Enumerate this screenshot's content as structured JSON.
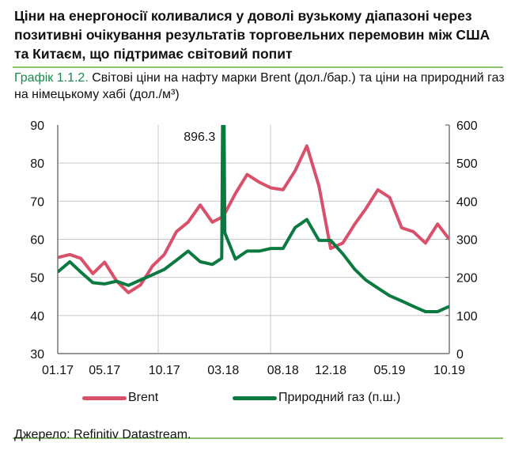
{
  "header": {
    "title": "Ціни на енергоносії коливалися у доволі вузькому діапазоні через позитивні очікування результатів торговельних перемовин між США та Китаєм, що підтримає світовий попит",
    "caption_number": "Графік 1.1.2.",
    "caption_text": " Світові ціни на нафту марки Brent (дол./бар.) та ціни на природний газ на німецькому хабі (дол./м³)"
  },
  "source": "Джерело: Refinitiv Datastream.",
  "colors": {
    "brent": "#d9506a",
    "gas": "#0b7a40",
    "rule": "#8dc26f",
    "caption_accent": "#1a8a4a",
    "grid": "#c8c8c8"
  },
  "chart_data": {
    "type": "line",
    "title": "",
    "x_tick_labels": [
      "01.17",
      "05.17",
      "10.17",
      "03.18",
      "08.18",
      "12.18",
      "05.19",
      "10.19"
    ],
    "x_tick_dates": [
      "2017-01-01",
      "2017-05-01",
      "2017-10-01",
      "2018-03-01",
      "2018-08-01",
      "2018-12-01",
      "2019-05-01",
      "2019-10-01"
    ],
    "xlim": [
      "2017-01-01",
      "2019-10-01"
    ],
    "y_left": {
      "lim": [
        30,
        90
      ],
      "ticks": [
        "30",
        "40",
        "50",
        "60",
        "70",
        "80",
        "90"
      ]
    },
    "y_right": {
      "lim": [
        0,
        600
      ],
      "ticks": [
        "0",
        "100",
        "200",
        "300",
        "400",
        "500",
        "600"
      ]
    },
    "grid": true,
    "legend_placement": "bottom",
    "annotation": {
      "text": "896.3",
      "date": "2018-03-01",
      "value": 896.3,
      "series": "gas"
    },
    "series": [
      {
        "name": "Brent",
        "axis": "left",
        "color": "#d9506a",
        "x": [
          "2017-01-01",
          "2017-02-01",
          "2017-03-01",
          "2017-04-01",
          "2017-05-01",
          "2017-06-01",
          "2017-07-01",
          "2017-08-01",
          "2017-09-01",
          "2017-10-01",
          "2017-11-01",
          "2017-12-01",
          "2018-01-01",
          "2018-02-01",
          "2018-03-01",
          "2018-04-01",
          "2018-05-01",
          "2018-06-01",
          "2018-07-01",
          "2018-08-01",
          "2018-09-01",
          "2018-10-01",
          "2018-11-01",
          "2018-12-01",
          "2019-01-01",
          "2019-02-01",
          "2019-03-01",
          "2019-04-01",
          "2019-05-01",
          "2019-06-01",
          "2019-07-01",
          "2019-08-01",
          "2019-09-01",
          "2019-10-01"
        ],
        "values": [
          55.2,
          56,
          55,
          51,
          54,
          49,
          46,
          48,
          53,
          56,
          62,
          64.5,
          69,
          64.5,
          66,
          72,
          77,
          75,
          73.5,
          73,
          78,
          84.5,
          74,
          57.6,
          59,
          64,
          68,
          73,
          71,
          63,
          62,
          59,
          64,
          60
        ]
      },
      {
        "name": "Природний газ (п.ш.)",
        "axis": "right",
        "color": "#0b7a40",
        "x": [
          "2017-01-01",
          "2017-02-01",
          "2017-03-01",
          "2017-04-01",
          "2017-05-01",
          "2017-06-01",
          "2017-07-01",
          "2017-08-01",
          "2017-09-01",
          "2017-10-01",
          "2017-11-01",
          "2017-12-01",
          "2018-01-01",
          "2018-02-01",
          "2018-02-25",
          "2018-03-01",
          "2018-03-05",
          "2018-04-01",
          "2018-05-01",
          "2018-06-01",
          "2018-07-01",
          "2018-08-01",
          "2018-09-01",
          "2018-10-01",
          "2018-11-01",
          "2018-12-01",
          "2019-01-01",
          "2019-02-01",
          "2019-03-01",
          "2019-04-01",
          "2019-05-01",
          "2019-06-01",
          "2019-07-01",
          "2019-08-01",
          "2019-09-01",
          "2019-10-01"
        ],
        "values": [
          214,
          241,
          214,
          186,
          183,
          190,
          179,
          193,
          207,
          221,
          245,
          269,
          241,
          234,
          250,
          896.3,
          317,
          248,
          269,
          269,
          276,
          276,
          331,
          352,
          297,
          297,
          262,
          221,
          193,
          172,
          152,
          138,
          124,
          110,
          110,
          124
        ]
      }
    ]
  }
}
